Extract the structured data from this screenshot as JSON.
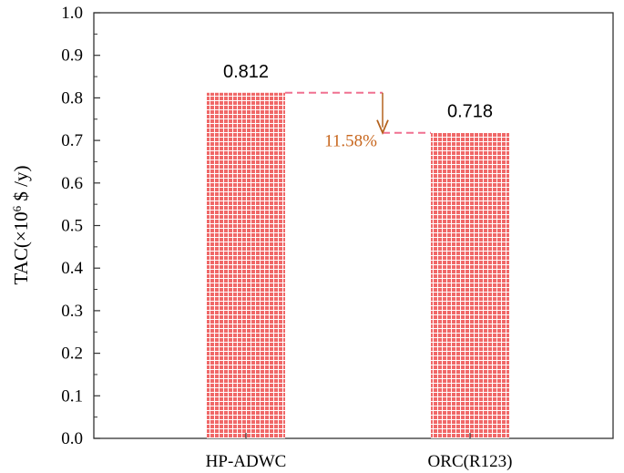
{
  "chart_data": {
    "type": "bar",
    "categories": [
      "HP-ADWC",
      "ORC(R123)"
    ],
    "values": [
      0.812,
      0.718
    ],
    "value_labels": [
      "0.812",
      "0.718"
    ],
    "ylabel_main": "TAC(×10",
    "ylabel_sup": "6",
    "ylabel_tail": " $ /y)",
    "ylim": [
      0,
      1.0
    ],
    "yticks": [
      "0.0",
      "0.1",
      "0.2",
      "0.3",
      "0.4",
      "0.5",
      "0.6",
      "0.7",
      "0.8",
      "0.9",
      "1.0"
    ],
    "grid": false,
    "bar_color": "#f06868",
    "bar_pattern_line_color": "#ffffff",
    "annotation": {
      "text": "11.58%",
      "color": "#c8671e",
      "dash_color": "#f07090",
      "arrow_color": "#b4621e"
    }
  }
}
